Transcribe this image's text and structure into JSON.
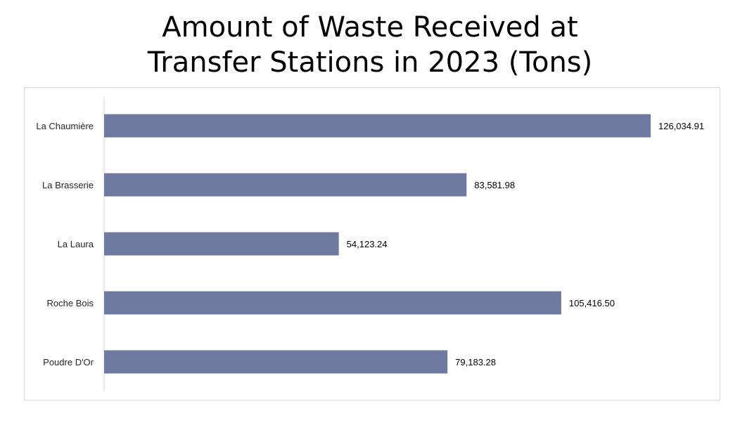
{
  "chart_data": {
    "type": "bar",
    "orientation": "horizontal",
    "title_lines": [
      "Amount of Waste Received at",
      "Transfer Stations in 2023 (Tons)"
    ],
    "categories": [
      "La Chaumière",
      "La Brasserie",
      "La Laura",
      "Roche Bois",
      "Poudre D'Or"
    ],
    "values": [
      126034.91,
      83581.98,
      54123.24,
      105416.5,
      79183.28
    ],
    "value_labels": [
      "126,034.91",
      "83,581.98",
      "54,123.24",
      "105,416.50",
      "79,183.28"
    ],
    "xlim": [
      0,
      126034.91
    ],
    "grid": false,
    "legend": "none",
    "bar_color": "#6f7aa0",
    "axis_color": "#d9d9d9"
  }
}
